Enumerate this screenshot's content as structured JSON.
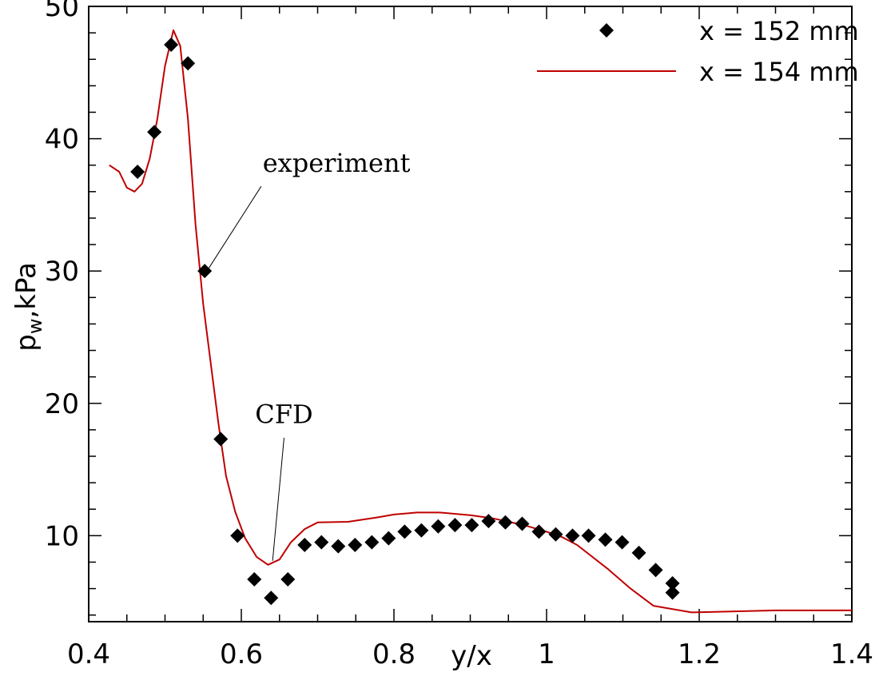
{
  "chart_data": {
    "type": "line",
    "title": "",
    "xlabel": "y/x",
    "ylabel": "p_w,kPa",
    "xlim": [
      0.4,
      1.4
    ],
    "ylim": [
      3.5,
      50
    ],
    "x_ticks": [
      {
        "value": 0.4,
        "label": "0.4"
      },
      {
        "value": 0.6,
        "label": "0.6"
      },
      {
        "value": 0.8,
        "label": "0.8"
      },
      {
        "value": 1.0,
        "label": "1"
      },
      {
        "value": 1.2,
        "label": "1.2"
      },
      {
        "value": 1.4,
        "label": "1.4"
      }
    ],
    "y_ticks": [
      {
        "value": 10,
        "label": "10"
      },
      {
        "value": 20,
        "label": "20"
      },
      {
        "value": 30,
        "label": "30"
      },
      {
        "value": 40,
        "label": "40"
      },
      {
        "value": 50,
        "label": "50"
      }
    ],
    "grid": false,
    "legend": {
      "position": "top-right"
    },
    "series": [
      {
        "name": "x = 152 mm",
        "type": "scatter",
        "marker": "diamond",
        "color": "#000000",
        "points": [
          [
            0.464,
            37.5
          ],
          [
            0.486,
            40.5
          ],
          [
            0.508,
            47.1
          ],
          [
            0.53,
            45.7
          ],
          [
            0.552,
            30.0
          ],
          [
            0.573,
            17.3
          ],
          [
            0.595,
            10.0
          ],
          [
            0.617,
            6.7
          ],
          [
            0.639,
            5.3
          ],
          [
            0.661,
            6.7
          ],
          [
            0.683,
            9.3
          ],
          [
            0.705,
            9.5
          ],
          [
            0.727,
            9.2
          ],
          [
            0.749,
            9.3
          ],
          [
            0.771,
            9.5
          ],
          [
            0.793,
            9.8
          ],
          [
            0.814,
            10.3
          ],
          [
            0.836,
            10.4
          ],
          [
            0.858,
            10.7
          ],
          [
            0.88,
            10.8
          ],
          [
            0.902,
            10.8
          ],
          [
            0.924,
            11.1
          ],
          [
            0.946,
            11.0
          ],
          [
            0.968,
            10.9
          ],
          [
            0.99,
            10.3
          ],
          [
            1.012,
            10.1
          ],
          [
            1.034,
            10.0
          ],
          [
            1.055,
            10.0
          ],
          [
            1.077,
            9.7
          ],
          [
            1.099,
            9.5
          ],
          [
            1.121,
            8.7
          ],
          [
            1.143,
            7.4
          ],
          [
            1.165,
            6.4
          ],
          [
            1.165,
            5.7
          ]
        ]
      },
      {
        "name": "x = 154 mm",
        "type": "line",
        "color": "#c00000",
        "points": [
          [
            0.427,
            38.0
          ],
          [
            0.44,
            37.5
          ],
          [
            0.45,
            36.3
          ],
          [
            0.46,
            36.0
          ],
          [
            0.47,
            36.6
          ],
          [
            0.48,
            38.5
          ],
          [
            0.49,
            41.5
          ],
          [
            0.5,
            45.5
          ],
          [
            0.511,
            48.2
          ],
          [
            0.52,
            47.0
          ],
          [
            0.53,
            41.5
          ],
          [
            0.54,
            33.5
          ],
          [
            0.55,
            27.5
          ],
          [
            0.56,
            23.0
          ],
          [
            0.57,
            18.5
          ],
          [
            0.58,
            14.5
          ],
          [
            0.592,
            11.8
          ],
          [
            0.605,
            9.8
          ],
          [
            0.62,
            8.4
          ],
          [
            0.635,
            7.8
          ],
          [
            0.65,
            8.2
          ],
          [
            0.665,
            9.5
          ],
          [
            0.683,
            10.5
          ],
          [
            0.7,
            11.0
          ],
          [
            0.74,
            11.05
          ],
          [
            0.78,
            11.4
          ],
          [
            0.8,
            11.6
          ],
          [
            0.83,
            11.75
          ],
          [
            0.86,
            11.75
          ],
          [
            0.9,
            11.55
          ],
          [
            0.93,
            11.3
          ],
          [
            0.97,
            10.8
          ],
          [
            1.0,
            10.3
          ],
          [
            1.02,
            9.9
          ],
          [
            1.04,
            9.3
          ],
          [
            1.08,
            7.5
          ],
          [
            1.11,
            6.0
          ],
          [
            1.14,
            4.7
          ],
          [
            1.19,
            4.2
          ],
          [
            1.3,
            4.35
          ],
          [
            1.4,
            4.35
          ]
        ]
      }
    ],
    "annotations": [
      {
        "text": "experiment",
        "text_pos": [
          0.628,
          37.5
        ],
        "anchor": "start",
        "line_from": [
          0.626,
          36.4
        ],
        "line_to": [
          0.555,
          30.0
        ]
      },
      {
        "text": "CFD",
        "text_pos": [
          0.656,
          18.5
        ],
        "anchor": "middle",
        "line_from": [
          0.656,
          17.4
        ],
        "line_to": [
          0.641,
          8.1
        ]
      }
    ]
  }
}
